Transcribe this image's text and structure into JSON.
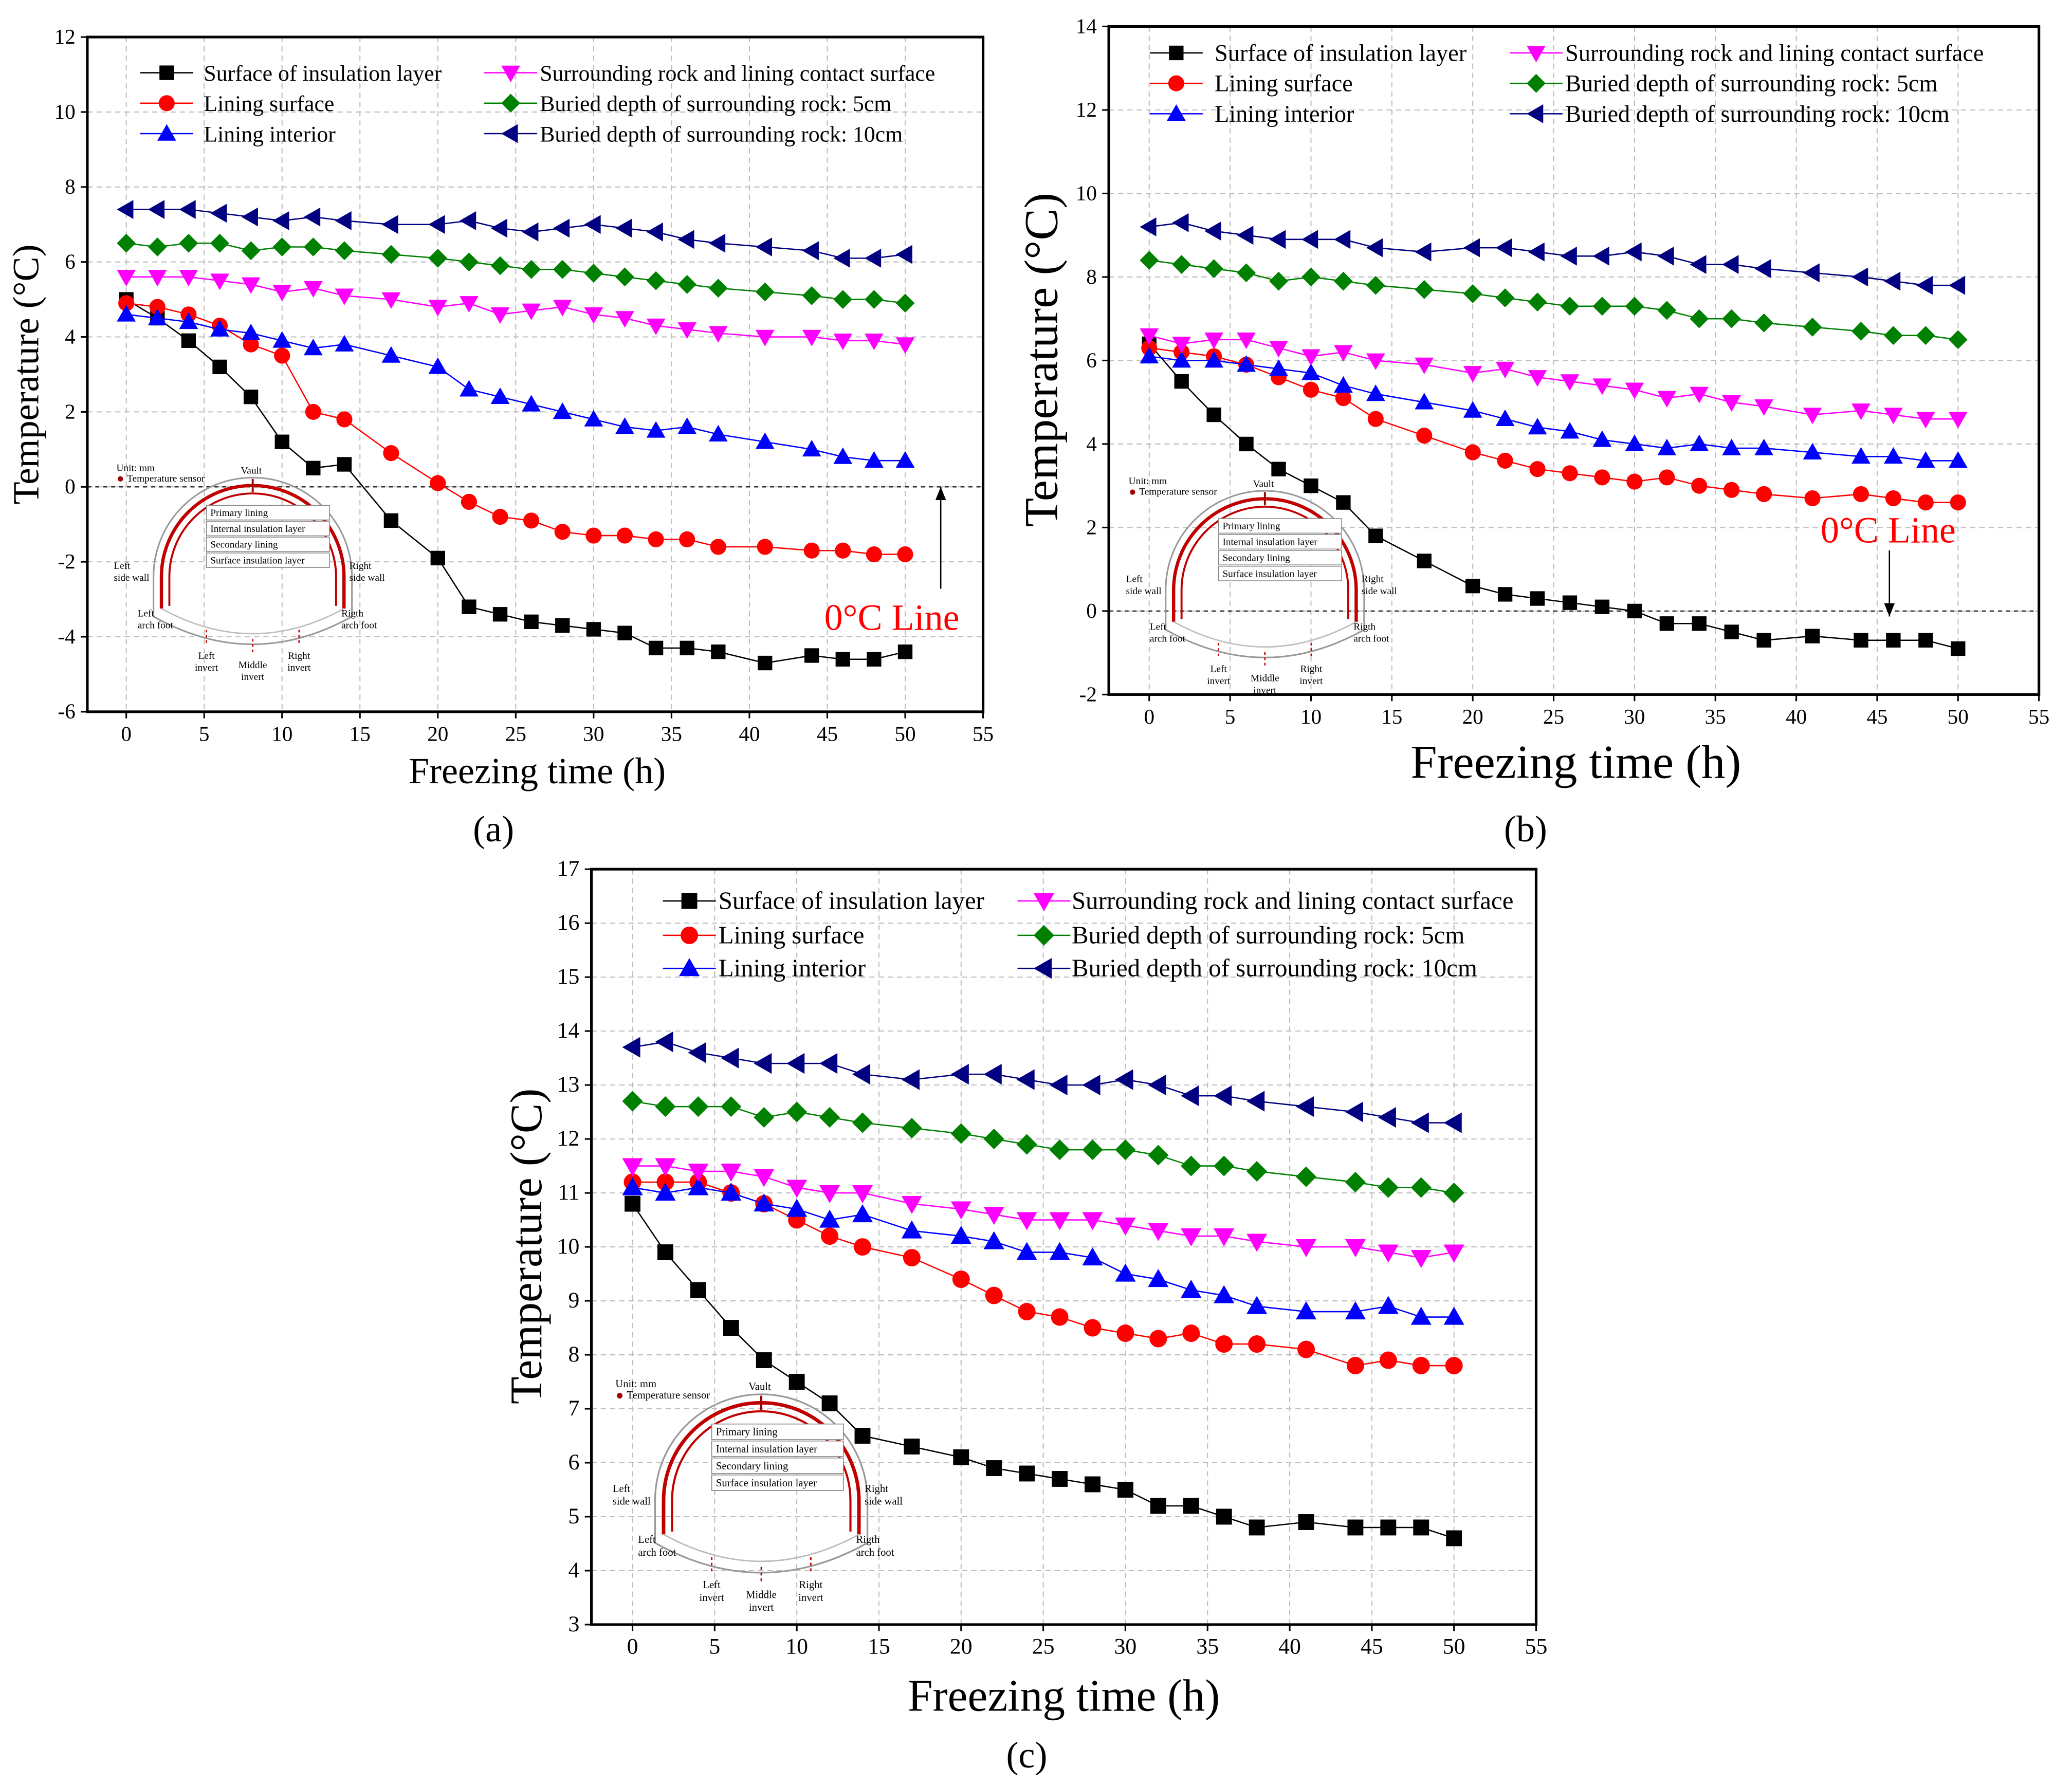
{
  "figure": {
    "panel_labels": [
      "(a)",
      "(b)",
      "(c)"
    ]
  },
  "inset": {
    "unit": "Unit: mm",
    "sensor": "Temperature sensor",
    "vault": "Vault",
    "layers": [
      "Primary lining",
      "Internal insulation layer",
      "Secondary lining",
      "Surface insulation layer"
    ],
    "left_side_wall": [
      "Left",
      "side wall"
    ],
    "right_side_wall": [
      "Right",
      "side wall"
    ],
    "left_arch_foot": [
      "Left",
      "arch foot"
    ],
    "right_arch_foot": [
      "Rigth",
      "arch foot"
    ],
    "left_invert": [
      "Left",
      "invert"
    ],
    "middle_invert": [
      "Middle",
      "invert"
    ],
    "right_invert": [
      "Right",
      "invert"
    ]
  },
  "chart_data": [
    {
      "type": "line",
      "panel": "(a)",
      "xlabel": "Freezing time (h)",
      "ylabel": "Temperature (°C)",
      "xlim": [
        -2.5,
        55
      ],
      "ylim": [
        -6,
        12
      ],
      "xticks": [
        0,
        5,
        10,
        15,
        20,
        25,
        30,
        35,
        40,
        45,
        50,
        55
      ],
      "yticks": [
        -6,
        -4,
        -2,
        0,
        2,
        4,
        6,
        8,
        10,
        12
      ],
      "grid": true,
      "legend_position": "top",
      "annotation": "0°C Line",
      "x": [
        0,
        2,
        4,
        6,
        8,
        10,
        12,
        14,
        17,
        20,
        22,
        24,
        26,
        28,
        30,
        32,
        34,
        36,
        38,
        41,
        44,
        46,
        48,
        50
      ],
      "series": [
        {
          "name": "Surface of insulation layer",
          "color": "#000000",
          "marker": "square",
          "values": [
            5.0,
            4.5,
            3.9,
            3.2,
            2.4,
            1.2,
            0.5,
            0.6,
            -0.9,
            -1.9,
            -3.2,
            -3.4,
            -3.6,
            -3.7,
            -3.8,
            -3.9,
            -4.3,
            -4.3,
            -4.4,
            -4.7,
            -4.5,
            -4.6,
            -4.6,
            -4.4
          ]
        },
        {
          "name": "Lining surface",
          "color": "#ff0000",
          "marker": "circle",
          "values": [
            4.9,
            4.8,
            4.6,
            4.3,
            3.8,
            3.5,
            2.0,
            1.8,
            0.9,
            0.1,
            -0.4,
            -0.8,
            -0.9,
            -1.2,
            -1.3,
            -1.3,
            -1.4,
            -1.4,
            -1.6,
            -1.6,
            -1.7,
            -1.7,
            -1.8,
            -1.8
          ]
        },
        {
          "name": "Lining interior",
          "color": "#0000ff",
          "marker": "triangle-up",
          "values": [
            4.6,
            4.5,
            4.4,
            4.2,
            4.1,
            3.9,
            3.7,
            3.8,
            3.5,
            3.2,
            2.6,
            2.4,
            2.2,
            2.0,
            1.8,
            1.6,
            1.5,
            1.6,
            1.4,
            1.2,
            1.0,
            0.8,
            0.7,
            0.7
          ]
        },
        {
          "name": "Surrounding rock and lining contact surface",
          "color": "#ff00ff",
          "marker": "triangle-down",
          "values": [
            5.6,
            5.6,
            5.6,
            5.5,
            5.4,
            5.2,
            5.3,
            5.1,
            5.0,
            4.8,
            4.9,
            4.6,
            4.7,
            4.8,
            4.6,
            4.5,
            4.3,
            4.2,
            4.1,
            4.0,
            4.0,
            3.9,
            3.9,
            3.8
          ]
        },
        {
          "name": "Buried depth of surrounding rock: 5cm",
          "color": "#008000",
          "marker": "diamond",
          "values": [
            6.5,
            6.4,
            6.5,
            6.5,
            6.3,
            6.4,
            6.4,
            6.3,
            6.2,
            6.1,
            6.0,
            5.9,
            5.8,
            5.8,
            5.7,
            5.6,
            5.5,
            5.4,
            5.3,
            5.2,
            5.1,
            5.0,
            5.0,
            4.9
          ]
        },
        {
          "name": "Buried depth of surrounding rock: 10cm",
          "color": "#000080",
          "marker": "triangle-left",
          "values": [
            7.4,
            7.4,
            7.4,
            7.3,
            7.2,
            7.1,
            7.2,
            7.1,
            7.0,
            7.0,
            7.1,
            6.9,
            6.8,
            6.9,
            7.0,
            6.9,
            6.8,
            6.6,
            6.5,
            6.4,
            6.3,
            6.1,
            6.1,
            6.2
          ]
        }
      ]
    },
    {
      "type": "line",
      "panel": "(b)",
      "xlabel": "Freezing time (h)",
      "ylabel": "Temperature (°C)",
      "xlim": [
        -2.5,
        55
      ],
      "ylim": [
        -2,
        14
      ],
      "xticks": [
        0,
        5,
        10,
        15,
        20,
        25,
        30,
        35,
        40,
        45,
        50,
        55
      ],
      "yticks": [
        -2,
        0,
        2,
        4,
        6,
        8,
        10,
        12,
        14
      ],
      "grid": true,
      "legend_position": "top",
      "annotation": "0°C Line",
      "x": [
        0,
        2,
        4,
        6,
        8,
        10,
        12,
        14,
        17,
        20,
        22,
        24,
        26,
        28,
        30,
        32,
        34,
        36,
        38,
        41,
        44,
        46,
        48,
        50
      ],
      "series": [
        {
          "name": "Surface of insulation layer",
          "color": "#000000",
          "marker": "square",
          "values": [
            6.4,
            5.5,
            4.7,
            4.0,
            3.4,
            3.0,
            2.6,
            1.8,
            1.2,
            0.6,
            0.4,
            0.3,
            0.2,
            0.1,
            0.0,
            -0.3,
            -0.3,
            -0.5,
            -0.7,
            -0.6,
            -0.7,
            -0.7,
            -0.7,
            -0.9
          ]
        },
        {
          "name": "Lining surface",
          "color": "#ff0000",
          "marker": "circle",
          "values": [
            6.3,
            6.2,
            6.1,
            5.9,
            5.6,
            5.3,
            5.1,
            4.6,
            4.2,
            3.8,
            3.6,
            3.4,
            3.3,
            3.2,
            3.1,
            3.2,
            3.0,
            2.9,
            2.8,
            2.7,
            2.8,
            2.7,
            2.6,
            2.6
          ]
        },
        {
          "name": "Lining interior",
          "color": "#0000ff",
          "marker": "triangle-up",
          "values": [
            6.1,
            6.0,
            6.0,
            5.9,
            5.8,
            5.7,
            5.4,
            5.2,
            5.0,
            4.8,
            4.6,
            4.4,
            4.3,
            4.1,
            4.0,
            3.9,
            4.0,
            3.9,
            3.9,
            3.8,
            3.7,
            3.7,
            3.6,
            3.6
          ]
        },
        {
          "name": "Surrounding rock and lining contact surface",
          "color": "#ff00ff",
          "marker": "triangle-down",
          "values": [
            6.6,
            6.4,
            6.5,
            6.5,
            6.3,
            6.1,
            6.2,
            6.0,
            5.9,
            5.7,
            5.8,
            5.6,
            5.5,
            5.4,
            5.3,
            5.1,
            5.2,
            5.0,
            4.9,
            4.7,
            4.8,
            4.7,
            4.6,
            4.6
          ]
        },
        {
          "name": "Buried depth of surrounding rock: 5cm",
          "color": "#008000",
          "marker": "diamond",
          "values": [
            8.4,
            8.3,
            8.2,
            8.1,
            7.9,
            8.0,
            7.9,
            7.8,
            7.7,
            7.6,
            7.5,
            7.4,
            7.3,
            7.3,
            7.3,
            7.2,
            7.0,
            7.0,
            6.9,
            6.8,
            6.7,
            6.6,
            6.6,
            6.5
          ]
        },
        {
          "name": "Buried depth of surrounding rock: 10cm",
          "color": "#000080",
          "marker": "triangle-left",
          "values": [
            9.2,
            9.3,
            9.1,
            9.0,
            8.9,
            8.9,
            8.9,
            8.7,
            8.6,
            8.7,
            8.7,
            8.6,
            8.5,
            8.5,
            8.6,
            8.5,
            8.3,
            8.3,
            8.2,
            8.1,
            8.0,
            7.9,
            7.8,
            7.8
          ]
        }
      ]
    },
    {
      "type": "line",
      "panel": "(c)",
      "xlabel": "Freezing time (h)",
      "ylabel": "Temperature (°C)",
      "xlim": [
        -2.5,
        55
      ],
      "ylim": [
        3,
        17
      ],
      "xticks": [
        0,
        5,
        10,
        15,
        20,
        25,
        30,
        35,
        40,
        45,
        50,
        55
      ],
      "yticks": [
        3,
        4,
        5,
        6,
        7,
        8,
        9,
        10,
        11,
        12,
        13,
        14,
        15,
        16,
        17
      ],
      "grid": true,
      "legend_position": "top",
      "x": [
        0,
        2,
        4,
        6,
        8,
        10,
        12,
        14,
        17,
        20,
        22,
        24,
        26,
        28,
        30,
        32,
        34,
        36,
        38,
        41,
        44,
        46,
        48,
        50
      ],
      "series": [
        {
          "name": "Surface of insulation layer",
          "color": "#000000",
          "marker": "square",
          "values": [
            10.8,
            9.9,
            9.2,
            8.5,
            7.9,
            7.5,
            7.1,
            6.5,
            6.3,
            6.1,
            5.9,
            5.8,
            5.7,
            5.6,
            5.5,
            5.2,
            5.2,
            5.0,
            4.8,
            4.9,
            4.8,
            4.8,
            4.8,
            4.6
          ]
        },
        {
          "name": "Lining surface",
          "color": "#ff0000",
          "marker": "circle",
          "values": [
            11.2,
            11.2,
            11.2,
            11.0,
            10.8,
            10.5,
            10.2,
            10.0,
            9.8,
            9.4,
            9.1,
            8.8,
            8.7,
            8.5,
            8.4,
            8.3,
            8.4,
            8.2,
            8.2,
            8.1,
            7.8,
            7.9,
            7.8,
            7.8
          ]
        },
        {
          "name": "Lining interior",
          "color": "#0000ff",
          "marker": "triangle-up",
          "values": [
            11.1,
            11.0,
            11.1,
            11.0,
            10.8,
            10.7,
            10.5,
            10.6,
            10.3,
            10.2,
            10.1,
            9.9,
            9.9,
            9.8,
            9.5,
            9.4,
            9.2,
            9.1,
            8.9,
            8.8,
            8.8,
            8.9,
            8.7,
            8.7
          ]
        },
        {
          "name": "Surrounding rock and lining contact surface",
          "color": "#ff00ff",
          "marker": "triangle-down",
          "values": [
            11.5,
            11.5,
            11.4,
            11.4,
            11.3,
            11.1,
            11.0,
            11.0,
            10.8,
            10.7,
            10.6,
            10.5,
            10.5,
            10.5,
            10.4,
            10.3,
            10.2,
            10.2,
            10.1,
            10.0,
            10.0,
            9.9,
            9.8,
            9.9
          ]
        },
        {
          "name": "Buried depth of surrounding rock: 5cm",
          "color": "#008000",
          "marker": "diamond",
          "values": [
            12.7,
            12.6,
            12.6,
            12.6,
            12.4,
            12.5,
            12.4,
            12.3,
            12.2,
            12.1,
            12.0,
            11.9,
            11.8,
            11.8,
            11.8,
            11.7,
            11.5,
            11.5,
            11.4,
            11.3,
            11.2,
            11.1,
            11.1,
            11.0
          ]
        },
        {
          "name": "Buried depth of surrounding rock: 10cm",
          "color": "#000080",
          "marker": "triangle-left",
          "values": [
            13.7,
            13.8,
            13.6,
            13.5,
            13.4,
            13.4,
            13.4,
            13.2,
            13.1,
            13.2,
            13.2,
            13.1,
            13.0,
            13.0,
            13.1,
            13.0,
            12.8,
            12.8,
            12.7,
            12.6,
            12.5,
            12.4,
            12.3,
            12.3
          ]
        }
      ]
    }
  ]
}
